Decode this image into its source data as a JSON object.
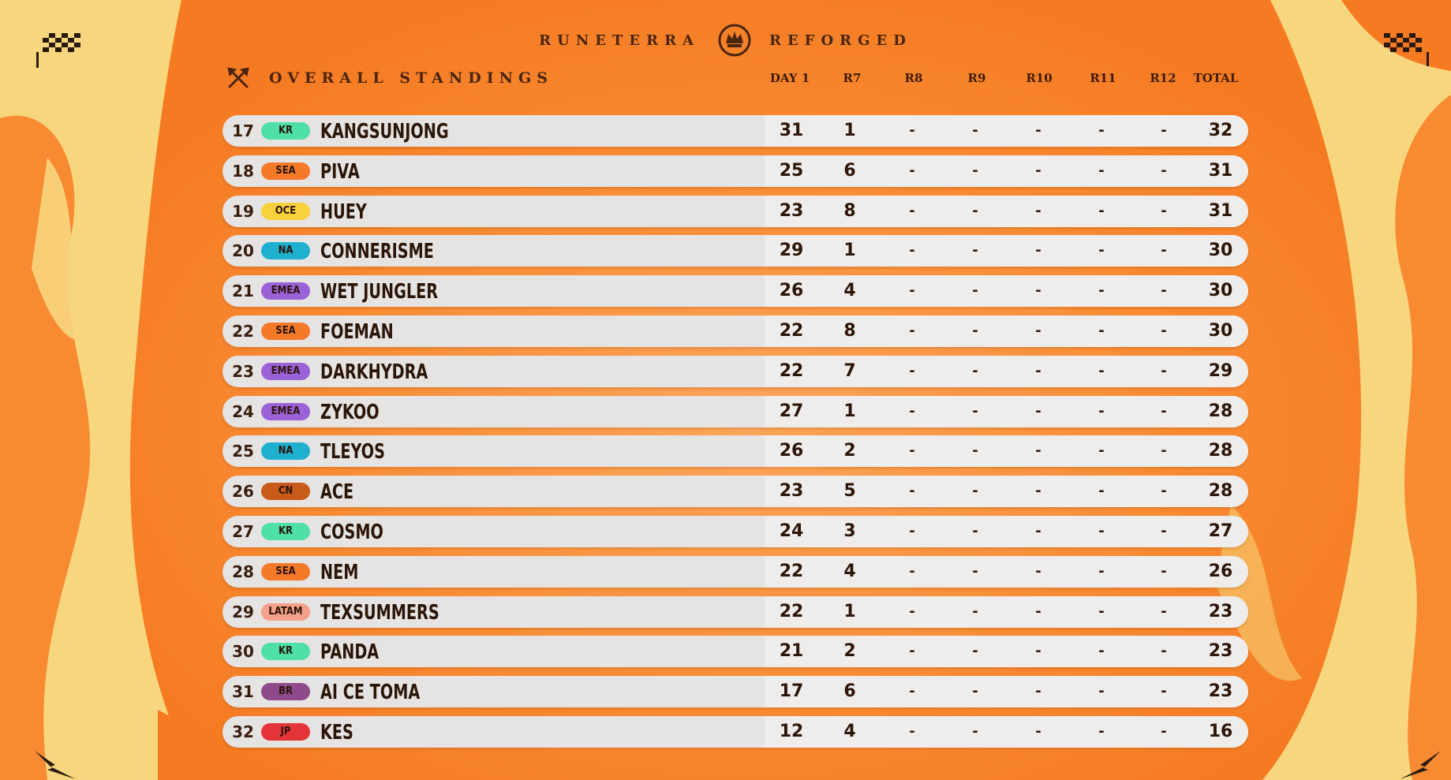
{
  "brand": {
    "left_word": "RUNETERRA",
    "right_word": "REFORGED",
    "emblem_icon": "crown-crest-icon"
  },
  "section": {
    "title": "OVERALL STANDINGS",
    "icon": "crossed-axes-icon"
  },
  "columns": [
    "DAY 1",
    "R7",
    "R8",
    "R9",
    "R10",
    "R11",
    "R12",
    "TOTAL"
  ],
  "region_colors": {
    "KR": "#4ee0a6",
    "SEA": "#f47a2a",
    "OCE": "#f7d23c",
    "NA": "#1fb0d0",
    "EMEA": "#9a62d6",
    "CN": "#c85a1a",
    "LATAM": "#f4a08a",
    "BR": "#8e4a8a",
    "JP": "#e4343a"
  },
  "standings": [
    {
      "rank": "17",
      "region": "KR",
      "player": "KANGSUNJONG",
      "scores": [
        "31",
        "1",
        "-",
        "-",
        "-",
        "-",
        "-"
      ],
      "total": "32"
    },
    {
      "rank": "18",
      "region": "SEA",
      "player": "PIVA",
      "scores": [
        "25",
        "6",
        "-",
        "-",
        "-",
        "-",
        "-"
      ],
      "total": "31"
    },
    {
      "rank": "19",
      "region": "OCE",
      "player": "HUEY",
      "scores": [
        "23",
        "8",
        "-",
        "-",
        "-",
        "-",
        "-"
      ],
      "total": "31"
    },
    {
      "rank": "20",
      "region": "NA",
      "player": "CONNERISME",
      "scores": [
        "29",
        "1",
        "-",
        "-",
        "-",
        "-",
        "-"
      ],
      "total": "30"
    },
    {
      "rank": "21",
      "region": "EMEA",
      "player": "WET JUNGLER",
      "scores": [
        "26",
        "4",
        "-",
        "-",
        "-",
        "-",
        "-"
      ],
      "total": "30"
    },
    {
      "rank": "22",
      "region": "SEA",
      "player": "FOEMAN",
      "scores": [
        "22",
        "8",
        "-",
        "-",
        "-",
        "-",
        "-"
      ],
      "total": "30"
    },
    {
      "rank": "23",
      "region": "EMEA",
      "player": "DARKHYDRA",
      "scores": [
        "22",
        "7",
        "-",
        "-",
        "-",
        "-",
        "-"
      ],
      "total": "29"
    },
    {
      "rank": "24",
      "region": "EMEA",
      "player": "ZYKOO",
      "scores": [
        "27",
        "1",
        "-",
        "-",
        "-",
        "-",
        "-"
      ],
      "total": "28"
    },
    {
      "rank": "25",
      "region": "NA",
      "player": "TLEYOS",
      "scores": [
        "26",
        "2",
        "-",
        "-",
        "-",
        "-",
        "-"
      ],
      "total": "28"
    },
    {
      "rank": "26",
      "region": "CN",
      "player": "ACE",
      "scores": [
        "23",
        "5",
        "-",
        "-",
        "-",
        "-",
        "-"
      ],
      "total": "28"
    },
    {
      "rank": "27",
      "region": "KR",
      "player": "COSMO",
      "scores": [
        "24",
        "3",
        "-",
        "-",
        "-",
        "-",
        "-"
      ],
      "total": "27"
    },
    {
      "rank": "28",
      "region": "SEA",
      "player": "NEM",
      "scores": [
        "22",
        "4",
        "-",
        "-",
        "-",
        "-",
        "-"
      ],
      "total": "26"
    },
    {
      "rank": "29",
      "region": "LATAM",
      "player": "TEXSUMMERS",
      "scores": [
        "22",
        "1",
        "-",
        "-",
        "-",
        "-",
        "-"
      ],
      "total": "23"
    },
    {
      "rank": "30",
      "region": "KR",
      "player": "PANDA",
      "scores": [
        "21",
        "2",
        "-",
        "-",
        "-",
        "-",
        "-"
      ],
      "total": "23"
    },
    {
      "rank": "31",
      "region": "BR",
      "player": "AI CE TOMA",
      "scores": [
        "17",
        "6",
        "-",
        "-",
        "-",
        "-",
        "-"
      ],
      "total": "23"
    },
    {
      "rank": "32",
      "region": "JP",
      "player": "KES",
      "scores": [
        "12",
        "4",
        "-",
        "-",
        "-",
        "-",
        "-"
      ],
      "total": "16"
    }
  ]
}
